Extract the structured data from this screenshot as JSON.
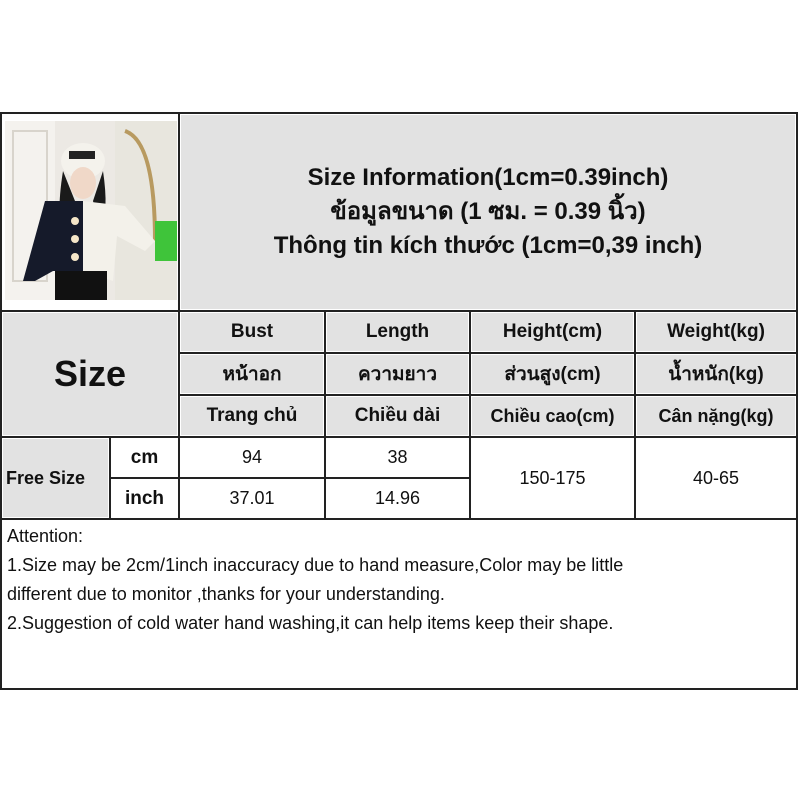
{
  "title": {
    "line1": "Size Information(1cm=0.39inch)",
    "line2": "ข้อมูลขนาด (1 ซม. = 0.39 นิ้ว)",
    "line3": "Thông tin kích thước (1cm=0,39 inch)"
  },
  "size_label": "Size",
  "headers": [
    {
      "en": "Bust",
      "th": "หน้าอก",
      "vi": "Trang chủ"
    },
    {
      "en": "Length",
      "th": "ความยาว",
      "vi": "Chiều dài"
    },
    {
      "en": "Height(cm)",
      "th": "ส่วนสูง(cm)",
      "vi": "Chiều cao(cm)"
    },
    {
      "en": "Weight(kg)",
      "th": "น้ำหนัก(kg)",
      "vi": "Cân nặng(kg)"
    }
  ],
  "rows": {
    "size": "Free Size",
    "cm_label": "cm",
    "inch_label": "inch",
    "bust_cm": "94",
    "length_cm": "38",
    "bust_inch": "37.01",
    "length_inch": "14.96",
    "height": "150-175",
    "weight": "40-65"
  },
  "attention": {
    "title": "Attention:",
    "line1": "1.Size may be 2cm/1inch inaccuracy due to hand measure,Color may be little",
    "line2": "different due to monitor ,thanks for your understanding.",
    "line3": "2.Suggestion of cold water hand washing,it can help items keep their shape."
  }
}
